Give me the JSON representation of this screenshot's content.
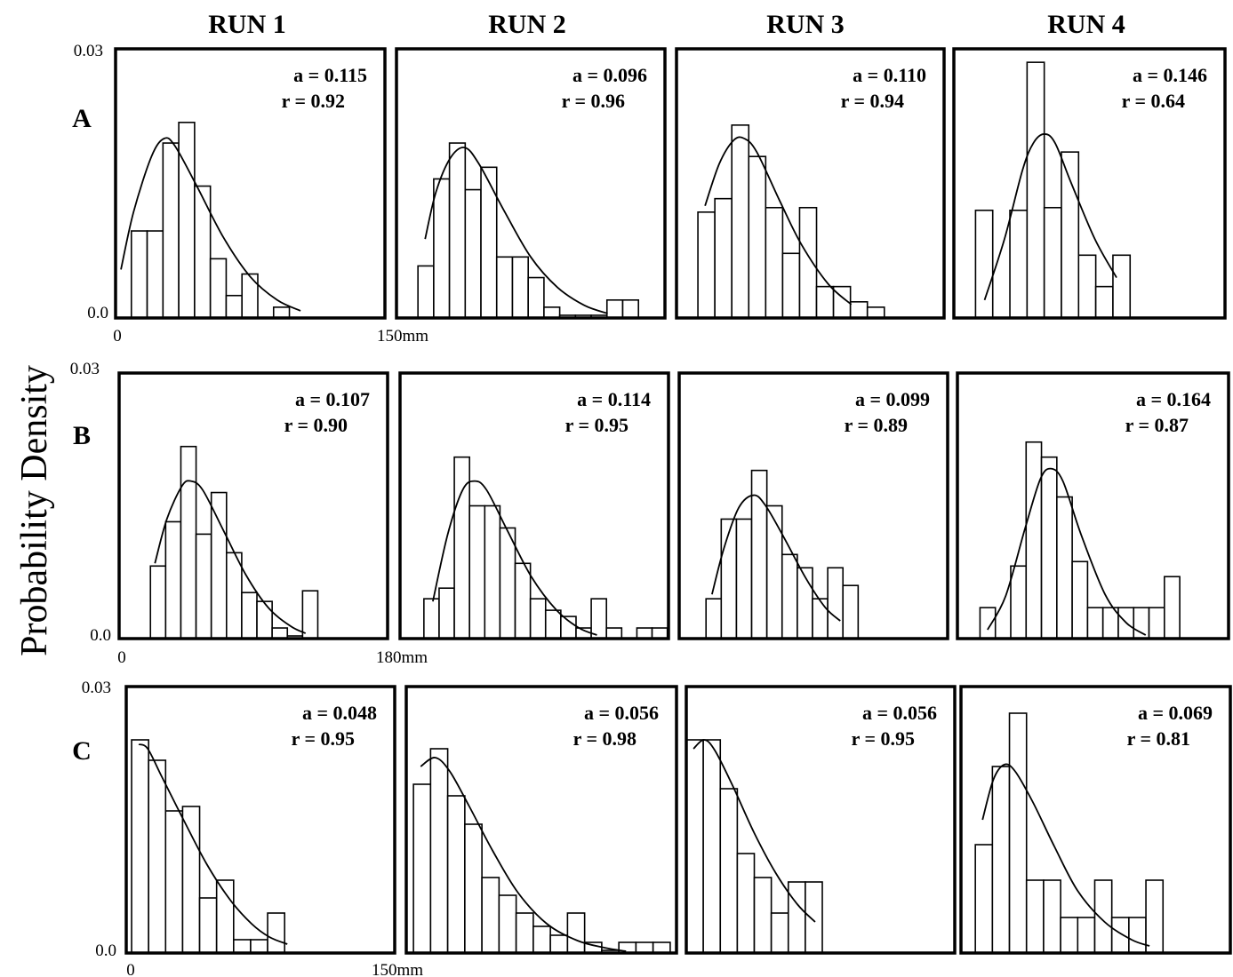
{
  "figure": {
    "ylabel": "Probability Density",
    "columns": [
      "RUN 1",
      "RUN 2",
      "RUN 3",
      "RUN 4"
    ],
    "rows": [
      "A",
      "B",
      "C"
    ],
    "y_tick_labels": [
      "0.03",
      "0.0"
    ],
    "x_tick_labels": [
      [
        "0",
        "150mm"
      ],
      [
        "0",
        "180mm"
      ],
      [
        "0",
        "150mm"
      ]
    ]
  },
  "chart_data": [
    {
      "type": "bar",
      "row": "A",
      "run": "RUN 1",
      "ylim": [
        0,
        0.03
      ],
      "xlim": [
        0,
        150
      ],
      "bin_start": 0,
      "bin_width": 8.8,
      "values": [
        0,
        0.0097,
        0.0097,
        0.0195,
        0.0218,
        0.0147,
        0.0066,
        0.0025,
        0.0049,
        0,
        0.0012
      ],
      "fit": [
        [
          3,
          0.0054
        ],
        [
          10,
          0.0118
        ],
        [
          20,
          0.018
        ],
        [
          27,
          0.02
        ],
        [
          33,
          0.0192
        ],
        [
          45,
          0.0148
        ],
        [
          60,
          0.009
        ],
        [
          75,
          0.0046
        ],
        [
          90,
          0.002
        ],
        [
          103,
          0.0008
        ]
      ],
      "annotations": {
        "a": "a = 0.115",
        "r": "r = 0.92"
      }
    },
    {
      "type": "bar",
      "row": "A",
      "run": "RUN 2",
      "ylim": [
        0,
        0.03
      ],
      "xlim": [
        0,
        150
      ],
      "bin_start": 12,
      "bin_width": 8.8,
      "values": [
        0.0058,
        0.0155,
        0.0195,
        0.0143,
        0.0168,
        0.0068,
        0.0068,
        0.0045,
        0.0012,
        0.0003,
        0.0003,
        0.0003,
        0.002,
        0.002
      ],
      "fit": [
        [
          16,
          0.0088
        ],
        [
          22,
          0.014
        ],
        [
          30,
          0.0178
        ],
        [
          38,
          0.019
        ],
        [
          46,
          0.0172
        ],
        [
          60,
          0.012
        ],
        [
          75,
          0.0068
        ],
        [
          90,
          0.0034
        ],
        [
          105,
          0.0014
        ],
        [
          118,
          0.0005
        ]
      ],
      "annotations": {
        "a": "a = 0.096",
        "r": "r = 0.96"
      }
    },
    {
      "type": "bar",
      "row": "A",
      "run": "RUN 3",
      "ylim": [
        0,
        0.03
      ],
      "xlim": [
        0,
        150
      ],
      "bin_start": 12,
      "bin_width": 9.5,
      "values": [
        0.0118,
        0.0133,
        0.0215,
        0.018,
        0.0123,
        0.0072,
        0.0123,
        0.0035,
        0.0035,
        0.0018,
        0.0012
      ],
      "fit": [
        [
          16,
          0.0125
        ],
        [
          24,
          0.0172
        ],
        [
          32,
          0.0198
        ],
        [
          38,
          0.02
        ],
        [
          45,
          0.0185
        ],
        [
          58,
          0.013
        ],
        [
          70,
          0.0082
        ],
        [
          85,
          0.0038
        ],
        [
          98,
          0.0015
        ]
      ],
      "annotations": {
        "a": "a = 0.110",
        "r": "r = 0.94"
      }
    },
    {
      "type": "bar",
      "row": "A",
      "run": "RUN 4",
      "ylim": [
        0,
        0.03
      ],
      "xlim": [
        0,
        150
      ],
      "bin_start": 12,
      "bin_width": 9.5,
      "values": [
        0.012,
        0,
        0.012,
        0.0285,
        0.0123,
        0.0185,
        0.007,
        0.0035,
        0.007
      ],
      "fit": [
        [
          17,
          0.002
        ],
        [
          28,
          0.0088
        ],
        [
          38,
          0.0165
        ],
        [
          44,
          0.0195
        ],
        [
          50,
          0.0205
        ],
        [
          56,
          0.0195
        ],
        [
          65,
          0.015
        ],
        [
          78,
          0.0088
        ],
        [
          90,
          0.0045
        ]
      ],
      "annotations": {
        "a": "a = 0.146",
        "r": "r = 0.64"
      }
    },
    {
      "type": "bar",
      "row": "B",
      "run": "RUN 1",
      "ylim": [
        0,
        0.03
      ],
      "xlim": [
        0,
        180
      ],
      "bin_start": 21,
      "bin_width": 10.2,
      "values": [
        0.0082,
        0.0132,
        0.0217,
        0.0118,
        0.0165,
        0.0097,
        0.0052,
        0.0042,
        0.0012,
        0.0003,
        0.0054
      ],
      "fit": [
        [
          24,
          0.0085
        ],
        [
          32,
          0.0135
        ],
        [
          42,
          0.0172
        ],
        [
          48,
          0.0178
        ],
        [
          56,
          0.0168
        ],
        [
          70,
          0.0122
        ],
        [
          85,
          0.0072
        ],
        [
          100,
          0.0035
        ],
        [
          115,
          0.0014
        ],
        [
          125,
          0.0006
        ]
      ],
      "annotations": {
        "a": "a = 0.107",
        "r": "r = 0.90"
      }
    },
    {
      "type": "bar",
      "row": "B",
      "run": "RUN 2",
      "ylim": [
        0,
        0.03
      ],
      "xlim": [
        0,
        180
      ],
      "bin_start": 16,
      "bin_width": 10.2,
      "values": [
        0.0045,
        0.0057,
        0.0205,
        0.015,
        0.015,
        0.0125,
        0.0085,
        0.0045,
        0.0032,
        0.0025,
        0.0012,
        0.0045,
        0.0012,
        0,
        0.0012,
        0.0012
      ],
      "fit": [
        [
          22,
          0.0042
        ],
        [
          32,
          0.0118
        ],
        [
          42,
          0.0168
        ],
        [
          50,
          0.0178
        ],
        [
          58,
          0.0168
        ],
        [
          72,
          0.0122
        ],
        [
          88,
          0.007
        ],
        [
          105,
          0.0032
        ],
        [
          120,
          0.0012
        ],
        [
          132,
          0.0004
        ]
      ],
      "annotations": {
        "a": "a = 0.114",
        "r": "r = 0.95"
      }
    },
    {
      "type": "bar",
      "row": "B",
      "run": "RUN 3",
      "ylim": [
        0,
        0.03
      ],
      "xlim": [
        0,
        180
      ],
      "bin_start": 18,
      "bin_width": 10.2,
      "values": [
        0.0045,
        0.0135,
        0.0135,
        0.019,
        0.015,
        0.0095,
        0.008,
        0.0045,
        0.008,
        0.006
      ],
      "fit": [
        [
          22,
          0.005
        ],
        [
          30,
          0.0102
        ],
        [
          40,
          0.0148
        ],
        [
          50,
          0.0162
        ],
        [
          58,
          0.015
        ],
        [
          70,
          0.0115
        ],
        [
          85,
          0.0068
        ],
        [
          98,
          0.0035
        ],
        [
          108,
          0.002
        ]
      ],
      "annotations": {
        "a": "a = 0.099",
        "r": "r = 0.89"
      }
    },
    {
      "type": "bar",
      "row": "B",
      "run": "RUN 4",
      "ylim": [
        0,
        0.03
      ],
      "xlim": [
        0,
        180
      ],
      "bin_start": 15,
      "bin_width": 10.2,
      "values": [
        0.0035,
        0,
        0.0082,
        0.0222,
        0.0205,
        0.016,
        0.0087,
        0.0035,
        0.0035,
        0.0035,
        0.0035,
        0.0035,
        0.007
      ],
      "fit": [
        [
          20,
          0.001
        ],
        [
          32,
          0.0048
        ],
        [
          45,
          0.0125
        ],
        [
          55,
          0.018
        ],
        [
          62,
          0.0192
        ],
        [
          70,
          0.0178
        ],
        [
          82,
          0.0118
        ],
        [
          98,
          0.005
        ],
        [
          112,
          0.0018
        ],
        [
          125,
          0.0004
        ]
      ],
      "annotations": {
        "a": "a = 0.164",
        "r": "r = 0.87"
      }
    },
    {
      "type": "bar",
      "row": "C",
      "run": "RUN 1",
      "ylim": [
        0,
        0.03
      ],
      "xlim": [
        0,
        150
      ],
      "bin_start": 3,
      "bin_width": 9.5,
      "values": [
        0.024,
        0.0217,
        0.016,
        0.0165,
        0.0062,
        0.0082,
        0.0015,
        0.0015,
        0.0045
      ],
      "fit": [
        [
          7,
          0.0235
        ],
        [
          12,
          0.023
        ],
        [
          20,
          0.0198
        ],
        [
          32,
          0.015
        ],
        [
          45,
          0.01
        ],
        [
          58,
          0.006
        ],
        [
          70,
          0.0033
        ],
        [
          80,
          0.0018
        ],
        [
          90,
          0.001
        ]
      ],
      "annotations": {
        "a": "a = 0.048",
        "r": "r = 0.95"
      }
    },
    {
      "type": "bar",
      "row": "C",
      "run": "RUN 2",
      "ylim": [
        0,
        0.03
      ],
      "xlim": [
        0,
        150
      ],
      "bin_start": 4,
      "bin_width": 9.5,
      "values": [
        0.019,
        0.023,
        0.0177,
        0.0145,
        0.0085,
        0.0065,
        0.0045,
        0.003,
        0.002,
        0.0045,
        0.0012,
        0.0003,
        0.0012,
        0.0012,
        0.0012
      ],
      "fit": [
        [
          8,
          0.021
        ],
        [
          16,
          0.022
        ],
        [
          24,
          0.0205
        ],
        [
          35,
          0.0165
        ],
        [
          48,
          0.0115
        ],
        [
          62,
          0.0068
        ],
        [
          78,
          0.0033
        ],
        [
          95,
          0.0014
        ],
        [
          110,
          0.0006
        ],
        [
          122,
          0.0002
        ]
      ],
      "annotations": {
        "a": "a = 0.056",
        "r": "r = 0.98"
      }
    },
    {
      "type": "bar",
      "row": "C",
      "run": "RUN 3",
      "ylim": [
        0,
        0.03
      ],
      "xlim": [
        0,
        150
      ],
      "bin_start": 0,
      "bin_width": 9.5,
      "values": [
        0.024,
        0.024,
        0.0185,
        0.0112,
        0.0085,
        0.0045,
        0.008,
        0.008
      ],
      "fit": [
        [
          4,
          0.023
        ],
        [
          10,
          0.024
        ],
        [
          16,
          0.0228
        ],
        [
          26,
          0.0188
        ],
        [
          38,
          0.0135
        ],
        [
          50,
          0.009
        ],
        [
          62,
          0.0055
        ],
        [
          72,
          0.0035
        ]
      ],
      "annotations": {
        "a": "a = 0.056",
        "r": "r = 0.95"
      }
    },
    {
      "type": "bar",
      "row": "C",
      "run": "RUN 4",
      "ylim": [
        0,
        0.03
      ],
      "xlim": [
        0,
        150
      ],
      "bin_start": 8,
      "bin_width": 9.5,
      "values": [
        0.0122,
        0.021,
        0.027,
        0.0082,
        0.0082,
        0.004,
        0.004,
        0.0082,
        0.004,
        0.004,
        0.0082
      ],
      "fit": [
        [
          12,
          0.015
        ],
        [
          18,
          0.0195
        ],
        [
          24,
          0.0212
        ],
        [
          30,
          0.0205
        ],
        [
          40,
          0.017
        ],
        [
          52,
          0.012
        ],
        [
          65,
          0.007
        ],
        [
          80,
          0.0035
        ],
        [
          95,
          0.0015
        ],
        [
          105,
          0.0008
        ]
      ],
      "annotations": {
        "a": "a = 0.069",
        "r": "r = 0.81"
      }
    }
  ]
}
